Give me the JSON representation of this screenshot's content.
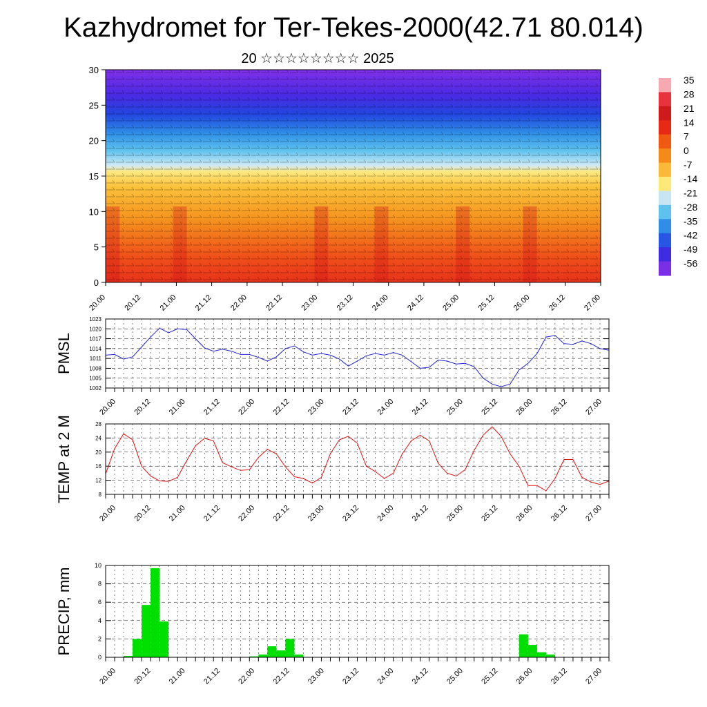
{
  "title": "Kazhydromet for Ter-Tekes-2000(42.71 80.014)",
  "subtitle": "20 ☆☆☆☆☆☆☆☆ 2025",
  "time_labels": [
    "20.00",
    "20.12",
    "21.00",
    "21.12",
    "22.00",
    "22.12",
    "23.00",
    "23.12",
    "24.00",
    "24.12",
    "25.00",
    "25.12",
    "26.00",
    "26.12",
    "27.00"
  ],
  "colorbar": {
    "labels": [
      "35",
      "28",
      "21",
      "14",
      "7",
      "0",
      "-7",
      "-14",
      "-21",
      "-28",
      "-35",
      "-42",
      "-49",
      "-56"
    ],
    "colors": [
      "#f7a8b0",
      "#e8323c",
      "#cf1a1a",
      "#e82a14",
      "#f05a10",
      "#f58a18",
      "#fbb938",
      "#fde878",
      "#c8e6f2",
      "#5ec2ee",
      "#2f8fe6",
      "#2755e6",
      "#3d2ce2",
      "#7a2ee6"
    ]
  },
  "chart_data": [
    {
      "type": "heatmap",
      "name": "cross-section",
      "y_ticks": [
        "0",
        "5",
        "10",
        "15",
        "20",
        "25",
        "30"
      ],
      "ylim": [
        0,
        30
      ],
      "description_of_levels": "temperature shading with wind barbs",
      "grid": false
    },
    {
      "type": "line",
      "ylabel": "PMSL",
      "ylim": [
        1002,
        1023
      ],
      "y_ticks": [
        "1002",
        "1005",
        "1008",
        "1011",
        "1014",
        "1017",
        "1020",
        "1023"
      ],
      "color": "#1f1fd0",
      "grid": true,
      "x": [
        "20.00",
        "20.03",
        "20.06",
        "20.09",
        "20.12",
        "20.15",
        "20.18",
        "20.21",
        "21.00",
        "21.03",
        "21.06",
        "21.09",
        "21.12",
        "21.15",
        "21.18",
        "21.21",
        "22.00",
        "22.03",
        "22.06",
        "22.09",
        "22.12",
        "22.15",
        "22.18",
        "22.21",
        "23.00",
        "23.03",
        "23.06",
        "23.09",
        "23.12",
        "23.15",
        "23.18",
        "23.21",
        "24.00",
        "24.03",
        "24.06",
        "24.09",
        "24.12",
        "24.15",
        "24.18",
        "24.21",
        "25.00",
        "25.03",
        "25.06",
        "25.09",
        "25.12",
        "25.15",
        "25.18",
        "25.21",
        "26.00",
        "26.03",
        "26.06",
        "26.09",
        "26.12",
        "26.15",
        "26.18",
        "26.21",
        "27.00"
      ],
      "values": [
        1012,
        1012.2,
        1010.8,
        1011.5,
        1014.5,
        1017.5,
        1020.2,
        1018.8,
        1020,
        1019.8,
        1017,
        1014.2,
        1013.2,
        1013.8,
        1013.2,
        1012.2,
        1012.2,
        1011.3,
        1010.2,
        1011.5,
        1014,
        1014.8,
        1013,
        1012,
        1012.5,
        1012,
        1010.8,
        1008.7,
        1010.2,
        1011.8,
        1012.5,
        1012,
        1012.8,
        1012,
        1010,
        1008,
        1008.3,
        1010.5,
        1010.2,
        1009.3,
        1009.5,
        1008.5,
        1005,
        1003.2,
        1002.4,
        1003.2,
        1007.5,
        1009.5,
        1012.5,
        1017.5,
        1018,
        1015.5,
        1015.3,
        1016.3,
        1015.5,
        1014,
        1013.5
      ]
    },
    {
      "type": "line",
      "ylabel": "TEMP at 2 M",
      "ylim": [
        8,
        28
      ],
      "y_ticks": [
        "8",
        "12",
        "16",
        "20",
        "24",
        "28"
      ],
      "color": "#e01010",
      "grid": true,
      "x": [
        "20.00",
        "20.03",
        "20.06",
        "20.09",
        "20.12",
        "20.15",
        "20.18",
        "20.21",
        "21.00",
        "21.03",
        "21.06",
        "21.09",
        "21.12",
        "21.15",
        "21.18",
        "21.21",
        "22.00",
        "22.03",
        "22.06",
        "22.09",
        "22.12",
        "22.15",
        "22.18",
        "22.21",
        "23.00",
        "23.03",
        "23.06",
        "23.09",
        "23.12",
        "23.15",
        "23.18",
        "23.21",
        "24.00",
        "24.03",
        "24.06",
        "24.09",
        "24.12",
        "24.15",
        "24.18",
        "24.21",
        "25.00",
        "25.03",
        "25.06",
        "25.09",
        "25.12",
        "25.15",
        "25.18",
        "25.21",
        "26.00",
        "26.03",
        "26.06",
        "26.09",
        "26.12",
        "26.15",
        "26.18",
        "26.21",
        "27.00"
      ],
      "values": [
        13.8,
        21,
        25.2,
        23.5,
        16,
        13.2,
        11.8,
        11.7,
        12.8,
        17.5,
        21.8,
        23.9,
        23.2,
        17,
        15.8,
        14.8,
        15,
        18.5,
        20.8,
        19.5,
        15.8,
        13,
        12.5,
        11.2,
        12.8,
        19.5,
        23.5,
        24.5,
        22.5,
        16,
        14.5,
        12.5,
        14,
        19.5,
        23.2,
        24.8,
        23.2,
        16.8,
        14,
        13.2,
        15,
        20.5,
        24.8,
        27.2,
        24.5,
        19.5,
        16,
        10.5,
        10.5,
        9,
        12.5,
        17.9,
        17.9,
        12.8,
        11.5,
        10.8,
        11.8
      ]
    },
    {
      "type": "bar",
      "ylabel": "PRECIP, mm",
      "ylim": [
        0,
        10
      ],
      "y_ticks": [
        "0",
        "2",
        "4",
        "6",
        "8",
        "10"
      ],
      "color": "#00e000",
      "grid": true,
      "x": [
        "20.03",
        "20.06",
        "20.09",
        "20.12",
        "20.15",
        "20.18",
        "20.21",
        "21.00",
        "21.03",
        "21.06",
        "21.09",
        "21.12",
        "21.15",
        "21.18",
        "21.21",
        "22.00",
        "22.03",
        "22.06",
        "22.09",
        "22.12",
        "22.15",
        "22.18",
        "22.21",
        "23.00",
        "23.03",
        "23.06",
        "23.09",
        "23.12",
        "23.15",
        "23.18",
        "23.21",
        "24.00",
        "24.03",
        "24.06",
        "24.09",
        "24.12",
        "24.15",
        "24.18",
        "24.21",
        "25.00",
        "25.03",
        "25.06",
        "25.09",
        "25.12",
        "25.15",
        "25.18",
        "25.21",
        "26.00",
        "26.03",
        "26.06",
        "26.09",
        "26.12",
        "26.15",
        "26.18",
        "26.21",
        "27.00"
      ],
      "values": [
        0,
        0,
        0.15,
        2,
        5.7,
        9.7,
        3.9,
        0,
        0,
        0,
        0,
        0,
        0,
        0,
        0,
        0,
        0.1,
        0.3,
        1.2,
        0.75,
        2,
        0.3,
        0,
        0,
        0,
        0,
        0,
        0,
        0,
        0,
        0,
        0,
        0,
        0,
        0,
        0,
        0,
        0,
        0,
        0,
        0,
        0,
        0,
        0,
        0,
        0,
        2.5,
        1.35,
        0.55,
        0.3,
        0,
        0,
        0,
        0,
        0,
        0
      ]
    }
  ]
}
